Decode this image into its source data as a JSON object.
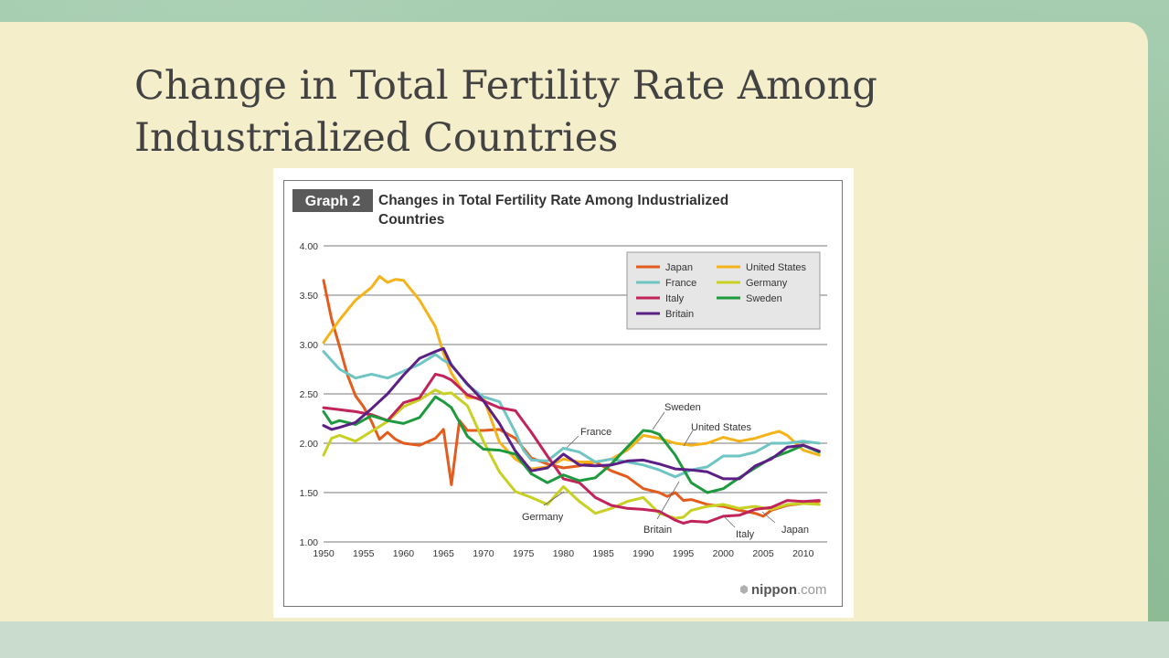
{
  "slide": {
    "title": "Change in Total Fertility Rate Among\nIndustrialized Countries"
  },
  "colors": {
    "slide_bg": "#9dc4a3",
    "panel_bg": "#f5eecb",
    "title_text": "#424242"
  },
  "chart_data": {
    "type": "line",
    "badge": "Graph 2",
    "title": "Changes in Total Fertility Rate Among Industrialized\nCountries",
    "xlabel": "",
    "ylabel": "",
    "xlim": [
      1950,
      2013
    ],
    "ylim": [
      1.0,
      4.0
    ],
    "grid": true,
    "legend_position": "top-right",
    "x_ticks": [
      1950,
      1955,
      1960,
      1965,
      1970,
      1975,
      1980,
      1985,
      1990,
      1995,
      2000,
      2005,
      2010
    ],
    "y_ticks": [
      "1.00",
      "1.50",
      "2.00",
      "2.50",
      "3.00",
      "3.50",
      "4.00"
    ],
    "legend_order": [
      "Japan",
      "United States",
      "France",
      "Germany",
      "Italy",
      "Sweden",
      "Britain"
    ],
    "series": [
      {
        "name": "Japan",
        "color": "#e35c1e",
        "x": [
          1950,
          1951,
          1952,
          1953,
          1954,
          1955,
          1956,
          1957,
          1958,
          1959,
          1960,
          1962,
          1964,
          1965,
          1966,
          1967,
          1968,
          1970,
          1972,
          1974,
          1976,
          1978,
          1980,
          1982,
          1984,
          1986,
          1988,
          1990,
          1992,
          1993,
          1994,
          1995,
          1996,
          1998,
          2000,
          2002,
          2004,
          2005,
          2006,
          2008,
          2010,
          2012
        ],
        "y": [
          3.65,
          3.26,
          2.98,
          2.69,
          2.48,
          2.37,
          2.22,
          2.04,
          2.11,
          2.04,
          2.0,
          1.98,
          2.05,
          2.14,
          1.58,
          2.23,
          2.13,
          2.13,
          2.14,
          2.05,
          1.85,
          1.79,
          1.75,
          1.77,
          1.81,
          1.72,
          1.66,
          1.54,
          1.5,
          1.46,
          1.5,
          1.42,
          1.43,
          1.38,
          1.36,
          1.32,
          1.29,
          1.26,
          1.32,
          1.37,
          1.39,
          1.41
        ]
      },
      {
        "name": "United States",
        "color": "#f5b31b",
        "x": [
          1950,
          1952,
          1954,
          1956,
          1957,
          1958,
          1959,
          1960,
          1962,
          1964,
          1965,
          1966,
          1968,
          1970,
          1972,
          1974,
          1976,
          1978,
          1980,
          1982,
          1984,
          1986,
          1988,
          1990,
          1992,
          1994,
          1996,
          1998,
          2000,
          2002,
          2004,
          2006,
          2007,
          2008,
          2010,
          2012
        ],
        "y": [
          3.02,
          3.25,
          3.45,
          3.58,
          3.69,
          3.63,
          3.66,
          3.65,
          3.45,
          3.18,
          2.91,
          2.71,
          2.46,
          2.46,
          2.01,
          1.84,
          1.74,
          1.76,
          1.84,
          1.81,
          1.81,
          1.84,
          1.93,
          2.08,
          2.05,
          2.0,
          1.98,
          2.0,
          2.06,
          2.02,
          2.05,
          2.1,
          2.12,
          2.08,
          1.93,
          1.88
        ]
      },
      {
        "name": "France",
        "color": "#6fc5c4",
        "x": [
          1950,
          1952,
          1954,
          1956,
          1958,
          1960,
          1962,
          1964,
          1965,
          1966,
          1968,
          1970,
          1972,
          1974,
          1975,
          1976,
          1978,
          1980,
          1982,
          1984,
          1986,
          1988,
          1990,
          1992,
          1994,
          1996,
          1998,
          2000,
          2002,
          2004,
          2006,
          2008,
          2010,
          2012
        ],
        "y": [
          2.93,
          2.75,
          2.66,
          2.7,
          2.66,
          2.73,
          2.8,
          2.9,
          2.84,
          2.8,
          2.59,
          2.47,
          2.42,
          2.11,
          1.93,
          1.83,
          1.82,
          1.95,
          1.91,
          1.81,
          1.84,
          1.81,
          1.78,
          1.73,
          1.66,
          1.73,
          1.76,
          1.87,
          1.87,
          1.91,
          2.0,
          2.0,
          2.02,
          2.0
        ]
      },
      {
        "name": "Germany",
        "color": "#c8d022",
        "x": [
          1950,
          1951,
          1952,
          1954,
          1956,
          1958,
          1960,
          1962,
          1964,
          1965,
          1966,
          1968,
          1970,
          1972,
          1974,
          1976,
          1978,
          1980,
          1982,
          1984,
          1986,
          1988,
          1990,
          1992,
          1994,
          1995,
          1996,
          1998,
          2000,
          2002,
          2004,
          2006,
          2008,
          2010,
          2012
        ],
        "y": [
          1.88,
          2.05,
          2.08,
          2.02,
          2.12,
          2.22,
          2.37,
          2.44,
          2.54,
          2.5,
          2.51,
          2.38,
          2.02,
          1.71,
          1.51,
          1.45,
          1.38,
          1.56,
          1.41,
          1.29,
          1.34,
          1.41,
          1.45,
          1.29,
          1.24,
          1.25,
          1.32,
          1.36,
          1.38,
          1.34,
          1.36,
          1.33,
          1.38,
          1.39,
          1.38
        ]
      },
      {
        "name": "Italy",
        "color": "#c0245a",
        "x": [
          1950,
          1952,
          1954,
          1956,
          1958,
          1960,
          1962,
          1964,
          1965,
          1966,
          1968,
          1970,
          1972,
          1974,
          1976,
          1978,
          1980,
          1982,
          1984,
          1986,
          1988,
          1990,
          1992,
          1994,
          1995,
          1996,
          1998,
          2000,
          2002,
          2004,
          2006,
          2008,
          2010,
          2012
        ],
        "y": [
          2.36,
          2.34,
          2.32,
          2.29,
          2.23,
          2.41,
          2.46,
          2.7,
          2.68,
          2.64,
          2.49,
          2.43,
          2.36,
          2.33,
          2.11,
          1.87,
          1.64,
          1.6,
          1.45,
          1.37,
          1.34,
          1.33,
          1.31,
          1.22,
          1.19,
          1.21,
          1.2,
          1.26,
          1.27,
          1.33,
          1.35,
          1.42,
          1.41,
          1.42
        ]
      },
      {
        "name": "Sweden",
        "color": "#1e9a3e",
        "x": [
          1950,
          1951,
          1952,
          1954,
          1956,
          1958,
          1960,
          1962,
          1964,
          1965,
          1966,
          1968,
          1970,
          1972,
          1974,
          1976,
          1978,
          1980,
          1982,
          1984,
          1986,
          1988,
          1990,
          1991,
          1992,
          1994,
          1996,
          1998,
          2000,
          2002,
          2004,
          2006,
          2008,
          2010,
          2012
        ],
        "y": [
          2.32,
          2.2,
          2.23,
          2.19,
          2.28,
          2.23,
          2.2,
          2.26,
          2.47,
          2.42,
          2.36,
          2.07,
          1.94,
          1.93,
          1.89,
          1.69,
          1.6,
          1.68,
          1.62,
          1.65,
          1.79,
          1.96,
          2.13,
          2.12,
          2.09,
          1.88,
          1.6,
          1.5,
          1.54,
          1.65,
          1.75,
          1.85,
          1.91,
          1.98,
          1.91
        ]
      },
      {
        "name": "Britain",
        "color": "#5b1f86",
        "x": [
          1950,
          1951,
          1952,
          1954,
          1956,
          1958,
          1960,
          1962,
          1964,
          1965,
          1966,
          1968,
          1970,
          1972,
          1974,
          1976,
          1978,
          1980,
          1982,
          1984,
          1986,
          1988,
          1990,
          1992,
          1994,
          1996,
          1998,
          2000,
          2002,
          2004,
          2006,
          2008,
          2010,
          2012
        ],
        "y": [
          2.18,
          2.14,
          2.16,
          2.21,
          2.35,
          2.5,
          2.69,
          2.86,
          2.93,
          2.96,
          2.79,
          2.6,
          2.43,
          2.2,
          1.92,
          1.72,
          1.75,
          1.89,
          1.78,
          1.77,
          1.78,
          1.82,
          1.83,
          1.79,
          1.74,
          1.73,
          1.71,
          1.64,
          1.64,
          1.77,
          1.84,
          1.96,
          1.98,
          1.92
        ]
      }
    ],
    "annotations": [
      "France",
      "Sweden",
      "United States",
      "Germany",
      "Britain",
      "Italy",
      "Japan"
    ],
    "credit": {
      "brand_name": "nippon",
      "brand_suffix": ".com"
    }
  }
}
